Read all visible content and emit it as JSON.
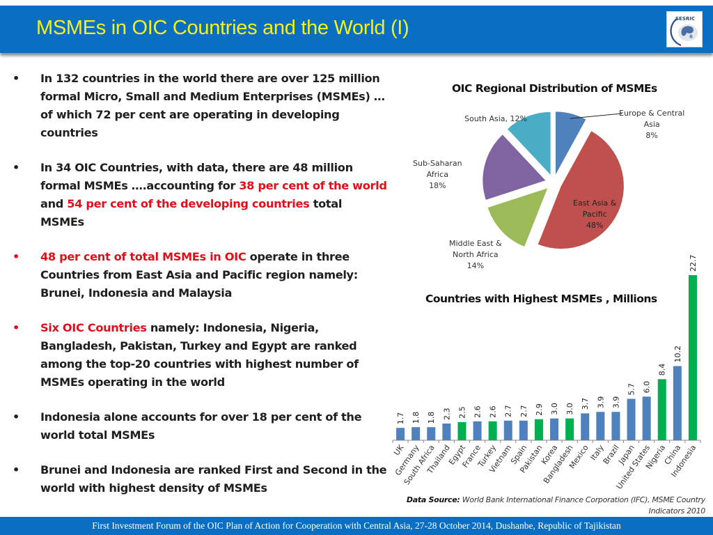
{
  "header": {
    "title": "MSMEs in OIC Countries and the World (I)",
    "logo_text": "SESRIC",
    "background_color": "#0a6fc2",
    "title_color": "#f4f21e"
  },
  "bullets": [
    {
      "color": "default",
      "segments": [
        {
          "text": "In 132 countries in the world there are over 125 million formal Micro, Small and Medium Enterprises (MSMEs) … of which 72 per cent are operating in developing countries",
          "highlight": false
        }
      ]
    },
    {
      "color": "default",
      "segments": [
        {
          "text": "In 34 OIC Countries, with data, there are 48 million formal MSMEs ….accounting for ",
          "highlight": false
        },
        {
          "text": "38 per cent of the world",
          "highlight": true
        },
        {
          "text": " and ",
          "highlight": false
        },
        {
          "text": "54 per cent of the developing countries",
          "highlight": true
        },
        {
          "text": " total MSMEs",
          "highlight": false
        }
      ]
    },
    {
      "color": "red",
      "segments": [
        {
          "text": "48 per cent of total MSMEs in OIC",
          "highlight": true
        },
        {
          "text": " operate in three Countries from East Asia and Pacific region namely: Brunei, Indonesia and Malaysia",
          "highlight": false
        }
      ]
    },
    {
      "color": "red",
      "segments": [
        {
          "text": "Six OIC Countries",
          "highlight": true
        },
        {
          "text": " namely: Indonesia, Nigeria, Bangladesh, Pakistan, Turkey and Egypt are ranked among the  top-20 countries with highest number of MSMEs operating in the world",
          "highlight": false
        }
      ]
    },
    {
      "color": "default",
      "segments": [
        {
          "text": "Indonesia alone accounts for over 18 per cent of the world total MSMEs",
          "highlight": false
        }
      ]
    },
    {
      "color": "default",
      "segments": [
        {
          "text": "Brunei and Indonesia are ranked First and Second in the world with highest density of MSMEs",
          "highlight": false
        }
      ]
    }
  ],
  "bullet_symbol": "•",
  "highlight_color": "#e0101b",
  "chart_data": [
    {
      "type": "pie",
      "title": "OIC Regional Distribution of MSMEs",
      "slices": [
        {
          "label": "Europe & Central Asia",
          "label_lines": [
            "Europe & Central",
            "Asia"
          ],
          "value": 8,
          "display": "8%",
          "color": "#4f81bd"
        },
        {
          "label": "East Asia & Pacific",
          "label_lines": [
            "East Asia &",
            "Pacific"
          ],
          "value": 48,
          "display": "48%",
          "color": "#c0504d"
        },
        {
          "label": "Middle East & North Africa",
          "label_lines": [
            "Middle East &",
            "North Africa"
          ],
          "value": 14,
          "display": "14%",
          "color": "#9bbb59"
        },
        {
          "label": "Sub-Saharan Africa",
          "label_lines": [
            "Sub-Saharan",
            "Africa"
          ],
          "value": 18,
          "display": "18%",
          "color": "#8064a2"
        },
        {
          "label": "South Asia",
          "label_lines": [
            "South Asia, 12%"
          ],
          "value": 12,
          "display": "",
          "color": "#4bacc6"
        }
      ],
      "exploded": true,
      "legend": "none"
    },
    {
      "type": "bar",
      "title": "Countries with Highest MSMEs , Millions",
      "categories": [
        "UK",
        "Germany",
        "South Africa",
        "Thailand",
        "Egypt",
        "France",
        "Turkey",
        "Vietnam",
        "Spain",
        "Pakistan",
        "Korea",
        "Bangladesh",
        "Mexico",
        "Italy",
        "Brazil",
        "Japan",
        "United States",
        "Nigeria",
        "China",
        "Indonesia"
      ],
      "values": [
        1.7,
        1.8,
        1.8,
        2.3,
        2.5,
        2.6,
        2.6,
        2.7,
        2.7,
        2.9,
        3.0,
        3.0,
        3.7,
        3.9,
        3.9,
        5.7,
        6.0,
        8.4,
        10.2,
        22.7
      ],
      "value_labels": [
        "1.7",
        "1.8",
        "1.8",
        "2.3",
        "2.5",
        "2.6",
        "2.6",
        "2.7",
        "2.7",
        "2.9",
        "3.0",
        "3.0",
        "3.7",
        "3.9",
        "3.9",
        "5.7",
        "6.0",
        "8.4",
        "10.2",
        "22.7"
      ],
      "oic_member": [
        false,
        false,
        false,
        false,
        true,
        false,
        true,
        false,
        false,
        true,
        false,
        true,
        false,
        false,
        false,
        false,
        false,
        true,
        false,
        true
      ],
      "colors": {
        "oic": "#00b050",
        "non_oic": "#4f81bd"
      },
      "xlabel": "",
      "ylabel": "",
      "ylim": [
        0,
        23
      ],
      "grid": false,
      "legend": "none"
    }
  ],
  "source": {
    "label": "Data Source:",
    "text": " World Bank International Finance Corporation (IFC), MSME Country Indicators 2010"
  },
  "footer": {
    "text": "First Investment Forum of the OIC Plan of Action for Cooperation with Central Asia, 27-28 October 2014, Dushanbe, Republic of Tajikistan"
  }
}
